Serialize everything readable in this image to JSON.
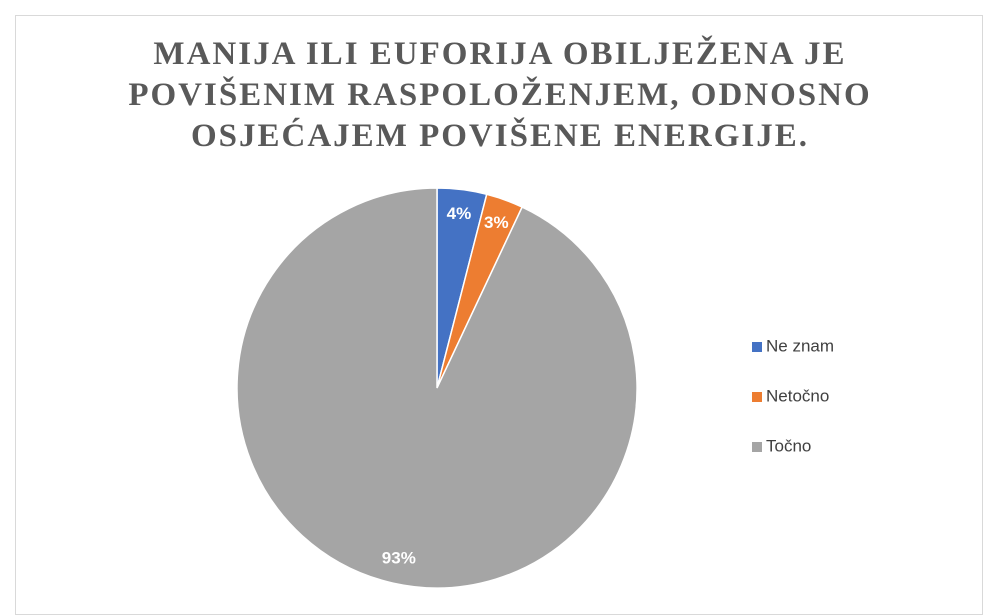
{
  "chart_data": {
    "type": "pie",
    "title": "MANIJA ILI EUFORIJA OBILJEŽENA JE POVIŠENIM RASPOLOŽENJEM, ODNOSNO OSJEĆAJEM POVIŠENE ENERGIJE.",
    "categories": [
      "Ne znam",
      "Netočno",
      "Točno"
    ],
    "values": [
      4,
      3,
      93
    ],
    "value_labels": [
      "4%",
      "3%",
      "93%"
    ],
    "colors": [
      "#4472c4",
      "#ed7d31",
      "#a5a5a5"
    ],
    "legend": "right"
  }
}
